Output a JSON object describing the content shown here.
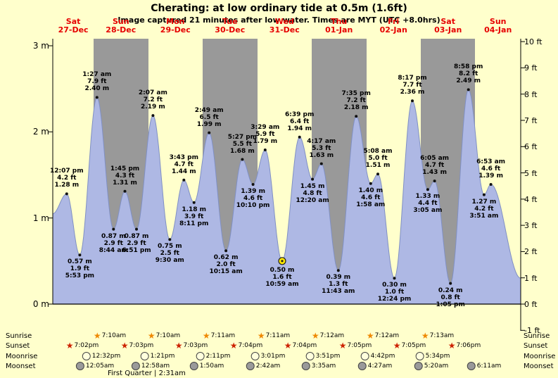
{
  "colors": {
    "background": "#ffffcc",
    "band_gray": "#999999",
    "band_yellow": "#ffffcc",
    "tide_fill": "#aeb8e4",
    "tide_stroke": "#8090c4",
    "day_label_red": "#e60000",
    "sunrise_star": "#ee8800",
    "sunset_star": "#cc2200",
    "moonrise_circle": "#ffffdd",
    "moonset_circle": "#9a9a9a",
    "sun_marker": "#ffe800"
  },
  "chart_data": {
    "type": "area",
    "title": "Cherating: at low  ordinary tide at 0.5m (1.6ft)",
    "subtitle": "Image captured 21 minutes after low water. Times are MYT (UTC +8.0hrs)",
    "x_origin": "Sat 27-Dec 06:00",
    "x_range_hours": [
      0,
      206
    ],
    "y_unit_left": "m",
    "y_unit_right": "ft",
    "y_range_m": [
      0,
      3.05
    ],
    "y_range_ft": [
      -1,
      10
    ],
    "days": [
      {
        "name": "Sat",
        "date": "27-Dec"
      },
      {
        "name": "Sun",
        "date": "28-Dec"
      },
      {
        "name": "Mon",
        "date": "29-Dec"
      },
      {
        "name": "Tue",
        "date": "30-Dec"
      },
      {
        "name": "Wed",
        "date": "31-Dec"
      },
      {
        "name": "Thu",
        "date": "01-Jan"
      },
      {
        "name": "Fri",
        "date": "02-Jan"
      },
      {
        "name": "Sat",
        "date": "03-Jan"
      },
      {
        "name": "Sun",
        "date": "04-Jan"
      }
    ],
    "y_axis_left_labels": [
      "3 m",
      "2 m",
      "1 m",
      "0 m"
    ],
    "y_axis_right_labels": [
      "10 ft",
      "9 ft",
      "8 ft",
      "7 ft",
      "6 ft",
      "5 ft",
      "4 ft",
      "3 ft",
      "2 ft",
      "1 ft",
      "0 ft",
      "-1 ft"
    ],
    "points": [
      {
        "t": 0,
        "h": 1.05,
        "kind": "edge"
      },
      {
        "t": 6.12,
        "h": 1.28,
        "kind": "high",
        "time": "12:07 pm",
        "ft": "4.2 ft",
        "m": "1.28 m"
      },
      {
        "t": 11.88,
        "h": 0.57,
        "kind": "low",
        "time": "5:53 pm",
        "ft": "1.9 ft",
        "m": "0.57 m"
      },
      {
        "t": 19.45,
        "h": 2.4,
        "kind": "high",
        "time": "1:27 am",
        "ft": "7.9 ft",
        "m": "2.40 m"
      },
      {
        "t": 26.73,
        "h": 0.87,
        "kind": "low",
        "time": "8:44 am",
        "ft": "2.9 ft",
        "m": "0.87 m"
      },
      {
        "t": 31.75,
        "h": 1.31,
        "kind": "high",
        "time": "1:45 pm",
        "ft": "4.3 ft",
        "m": "1.31 m"
      },
      {
        "t": 36.85,
        "h": 0.87,
        "kind": "low",
        "time": "6:51 pm",
        "ft": "2.9 ft",
        "m": "0.87 m"
      },
      {
        "t": 44.12,
        "h": 2.19,
        "kind": "high",
        "time": "2:07 am",
        "ft": "7.2 ft",
        "m": "2.19 m"
      },
      {
        "t": 51.5,
        "h": 0.75,
        "kind": "low",
        "time": "9:30 am",
        "ft": "2.5 ft",
        "m": "0.75 m"
      },
      {
        "t": 57.72,
        "h": 1.44,
        "kind": "high",
        "time": "3:43 pm",
        "ft": "4.7 ft",
        "m": "1.44 m"
      },
      {
        "t": 62.18,
        "h": 1.18,
        "kind": "low",
        "time": "8:11 pm",
        "ft": "3.9 ft",
        "m": "1.18 m"
      },
      {
        "t": 68.82,
        "h": 1.99,
        "kind": "high",
        "time": "2:49 am",
        "ft": "6.5 ft",
        "m": "1.99 m"
      },
      {
        "t": 76.25,
        "h": 0.62,
        "kind": "low",
        "time": "10:15 am",
        "ft": "2.0 ft",
        "m": "0.62 m"
      },
      {
        "t": 83.45,
        "h": 1.68,
        "kind": "high",
        "time": "5:27 pm",
        "ft": "5.5 ft",
        "m": "1.68 m"
      },
      {
        "t": 88.17,
        "h": 1.39,
        "kind": "low",
        "time": "10:10 pm",
        "ft": "4.6 ft",
        "m": "1.39 m"
      },
      {
        "t": 93.48,
        "h": 1.79,
        "kind": "high",
        "time": "3:29 am",
        "ft": "5.9 ft",
        "m": "1.79 m"
      },
      {
        "t": 100.98,
        "h": 0.5,
        "kind": "low",
        "marker": "sun",
        "time": "10:59 am",
        "ft": "1.6 ft",
        "m": "0.50 m"
      },
      {
        "t": 108.65,
        "h": 1.94,
        "kind": "high",
        "time": "6:39 pm",
        "ft": "6.4 ft",
        "m": "1.94 m"
      },
      {
        "t": 114.33,
        "h": 1.45,
        "kind": "low",
        "time": "12:20 am",
        "ft": "4.8 ft",
        "m": "1.45 m"
      },
      {
        "t": 118.28,
        "h": 1.63,
        "kind": "high",
        "time": "4:17 am",
        "ft": "5.3 ft",
        "m": "1.63 m"
      },
      {
        "t": 125.72,
        "h": 0.39,
        "kind": "low",
        "time": "11:43 am",
        "ft": "1.3 ft",
        "m": "0.39 m"
      },
      {
        "t": 133.58,
        "h": 2.18,
        "kind": "high",
        "time": "7:35 pm",
        "ft": "7.2 ft",
        "m": "2.18 m"
      },
      {
        "t": 139.97,
        "h": 1.4,
        "kind": "low",
        "time": "1:58 am",
        "ft": "4.6 ft",
        "m": "1.40 m"
      },
      {
        "t": 143.13,
        "h": 1.51,
        "kind": "high",
        "time": "5:08 am",
        "ft": "5.0 ft",
        "m": "1.51 m"
      },
      {
        "t": 150.4,
        "h": 0.3,
        "kind": "low",
        "time": "12:24 pm",
        "ft": "1.0 ft",
        "m": "0.30 m"
      },
      {
        "t": 158.28,
        "h": 2.36,
        "kind": "high",
        "time": "8:17 pm",
        "ft": "7.7 ft",
        "m": "2.36 m"
      },
      {
        "t": 165.08,
        "h": 1.33,
        "kind": "low",
        "time": "3:05 am",
        "ft": "4.4 ft",
        "m": "1.33 m"
      },
      {
        "t": 168.08,
        "h": 1.43,
        "kind": "high",
        "time": "6:05 am",
        "ft": "4.7 ft",
        "m": "1.43 m"
      },
      {
        "t": 175.08,
        "h": 0.24,
        "kind": "low",
        "time": "1:05 pm",
        "ft": "0.8 ft",
        "m": "0.24 m"
      },
      {
        "t": 182.97,
        "h": 2.49,
        "kind": "high",
        "time": "8:58 pm",
        "ft": "8.2 ft",
        "m": "2.49 m"
      },
      {
        "t": 189.85,
        "h": 1.27,
        "kind": "low",
        "time": "3:51 am",
        "ft": "4.2 ft",
        "m": "1.27 m"
      },
      {
        "t": 192.88,
        "h": 1.39,
        "kind": "high",
        "time": "6:53 am",
        "ft": "4.6 ft",
        "m": "1.39 m"
      },
      {
        "t": 206,
        "h": 0.3,
        "kind": "edge"
      }
    ]
  },
  "astro": {
    "rows": [
      {
        "name": "sunrise",
        "label": "Sunrise",
        "icon": "sunrise-star-icon",
        "times": [
          "7:10am",
          "7:10am",
          "7:11am",
          "7:11am",
          "7:12am",
          "7:12am",
          "7:13am"
        ]
      },
      {
        "name": "sunset",
        "label": "Sunset",
        "icon": "sunset-star-icon",
        "times": [
          "7:02pm",
          "7:03pm",
          "7:03pm",
          "7:04pm",
          "7:04pm",
          "7:05pm",
          "7:05pm",
          "7:06pm"
        ]
      },
      {
        "name": "moonrise",
        "label": "Moonrise",
        "icon": "moonrise-icon",
        "times": [
          "12:32pm",
          "1:21pm",
          "2:11pm",
          "3:01pm",
          "3:51pm",
          "4:42pm",
          "5:34pm"
        ]
      },
      {
        "name": "moonset",
        "label": "Moonset",
        "icon": "moonset-icon",
        "times": [
          "12:05am",
          "12:58am",
          "1:50am",
          "2:42am",
          "3:35am",
          "4:27am",
          "5:20am",
          "6:11am"
        ]
      }
    ],
    "first_quarter": "First Quarter | 2:31am"
  }
}
